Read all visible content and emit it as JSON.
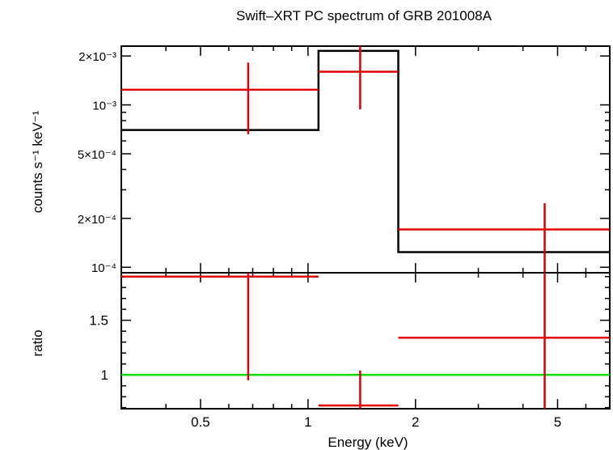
{
  "chart_data": [
    {
      "type": "line",
      "panel": "spectrum",
      "title": "Swift–XRT PC spectrum of GRB 201008A",
      "ylabel": "counts s⁻¹ keV⁻¹",
      "xscale": "log",
      "yscale": "log",
      "xlim": [
        0.3,
        7.0
      ],
      "ylim": [
        9.25e-05,
        0.0023
      ],
      "yticks": [
        {
          "value": 0.0001,
          "label": "10⁻⁴"
        },
        {
          "value": 0.0002,
          "label": "2×10⁻⁴"
        },
        {
          "value": 0.0005,
          "label": "5×10⁻⁴"
        },
        {
          "value": 0.001,
          "label": "10⁻³"
        },
        {
          "value": 0.002,
          "label": "2×10⁻³"
        }
      ],
      "model": {
        "color": "#000000",
        "steps": [
          {
            "x0": 0.3,
            "x1": 1.07,
            "y": 0.0007
          },
          {
            "x0": 1.07,
            "x1": 1.79,
            "y": 0.00215
          },
          {
            "x0": 1.79,
            "x1": 7.0,
            "y": 0.000124
          }
        ]
      },
      "data": {
        "color": "#e00000",
        "points": [
          {
            "x": 0.68,
            "xlo": 0.3,
            "xhi": 1.07,
            "y": 0.00124,
            "ylo": 0.00066,
            "yhi": 0.00182
          },
          {
            "x": 1.4,
            "xlo": 1.07,
            "xhi": 1.79,
            "y": 0.0016,
            "ylo": 0.00094,
            "yhi": 0.0023
          },
          {
            "x": 4.6,
            "xlo": 1.79,
            "xhi": 7.0,
            "y": 0.000171,
            "ylo": 9.25e-05,
            "yhi": 0.000248
          }
        ]
      }
    },
    {
      "type": "line",
      "panel": "ratio",
      "xlabel": "Energy (keV)",
      "ylabel": "ratio",
      "xscale": "log",
      "yscale": "linear",
      "xlim": [
        0.3,
        7.0
      ],
      "ylim": [
        0.69,
        1.935
      ],
      "xticks": [
        {
          "value": 0.5,
          "label": "0.5"
        },
        {
          "value": 1,
          "label": "1"
        },
        {
          "value": 2,
          "label": "2"
        },
        {
          "value": 5,
          "label": "5"
        }
      ],
      "yticks": [
        {
          "value": 1,
          "label": "1"
        },
        {
          "value": 1.5,
          "label": "1.5"
        }
      ],
      "reference": {
        "y": 1.0,
        "color": "#00e000"
      },
      "data": {
        "color": "#e00000",
        "points": [
          {
            "x": 0.68,
            "xlo": 0.3,
            "xhi": 1.07,
            "y": 1.9,
            "ylo": 0.95,
            "yhi": 1.935
          },
          {
            "x": 1.4,
            "xlo": 1.07,
            "xhi": 1.79,
            "y": 0.72,
            "ylo": 0.69,
            "yhi": 1.04
          },
          {
            "x": 4.6,
            "xlo": 1.79,
            "xhi": 7.0,
            "y": 1.34,
            "ylo": 0.69,
            "yhi": 1.935
          }
        ]
      }
    }
  ]
}
